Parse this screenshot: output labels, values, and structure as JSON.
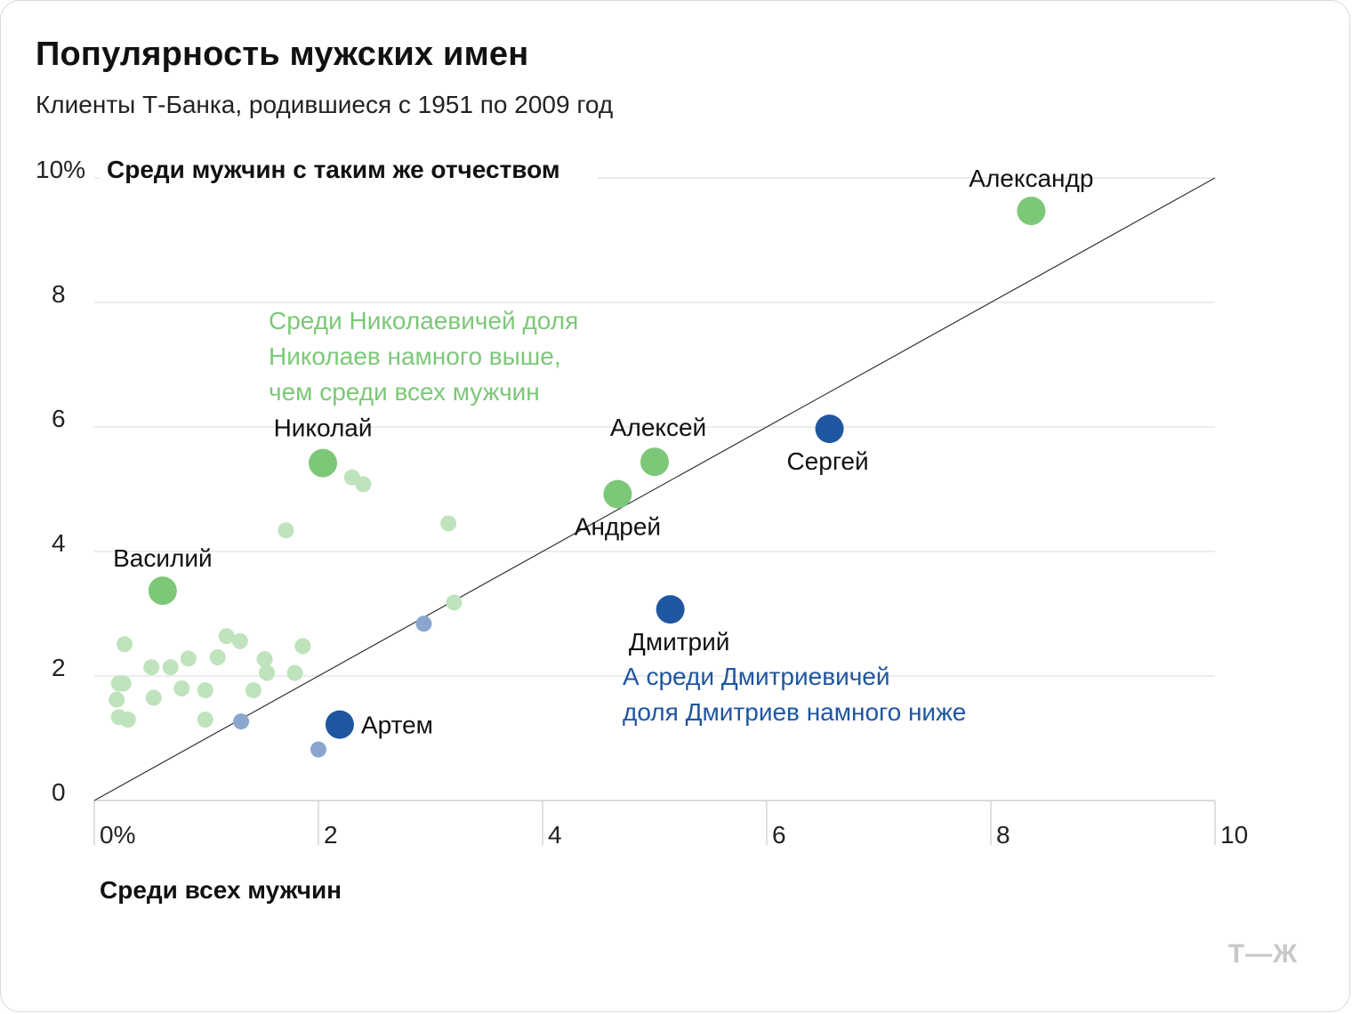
{
  "title": "Популярность мужских имен",
  "subtitle": "Клиенты Т-Банка, родившиеся с 1951 по 2009 год",
  "colors": {
    "green": "#7cc878",
    "green_light": "#bfe3bc",
    "blue": "#1f56a0",
    "blue_light": "#8aa6cf",
    "grid": "#e6e6e6",
    "diagonal": "#333333"
  },
  "chart_data": {
    "type": "scatter",
    "xlabel": "Среди всех мужчин",
    "ylabel": "Среди мужчин с таким же отчеством",
    "xlim": [
      0,
      10
    ],
    "ylim": [
      0,
      10
    ],
    "x_ticks": [
      "0%",
      "2",
      "4",
      "6",
      "8",
      "10"
    ],
    "y_ticks": [
      "0",
      "2",
      "4",
      "6",
      "8",
      "10%"
    ],
    "grid": "horizontal",
    "reference_line": "y = x",
    "labeled_points": [
      {
        "name": "Александр",
        "x": 8.36,
        "y": 9.47,
        "group": "green"
      },
      {
        "name": "Николай",
        "x": 2.04,
        "y": 5.42,
        "group": "green"
      },
      {
        "name": "Алексей",
        "x": 5.0,
        "y": 5.44,
        "group": "green"
      },
      {
        "name": "Андрей",
        "x": 4.67,
        "y": 4.92,
        "group": "green"
      },
      {
        "name": "Сергей",
        "x": 6.56,
        "y": 5.97,
        "group": "blue"
      },
      {
        "name": "Василий",
        "x": 0.61,
        "y": 3.37,
        "group": "green"
      },
      {
        "name": "Дмитрий",
        "x": 5.14,
        "y": 3.07,
        "group": "blue"
      },
      {
        "name": "Артем",
        "x": 2.19,
        "y": 1.22,
        "group": "blue"
      }
    ],
    "other_points": [
      {
        "x": 2.3,
        "y": 5.19,
        "group": "green"
      },
      {
        "x": 2.4,
        "y": 5.08,
        "group": "green"
      },
      {
        "x": 1.71,
        "y": 4.34,
        "group": "green"
      },
      {
        "x": 3.16,
        "y": 4.45,
        "group": "green"
      },
      {
        "x": 3.21,
        "y": 3.18,
        "group": "green"
      },
      {
        "x": 2.94,
        "y": 2.84,
        "group": "blue"
      },
      {
        "x": 0.27,
        "y": 2.51,
        "group": "green"
      },
      {
        "x": 1.18,
        "y": 2.64,
        "group": "green"
      },
      {
        "x": 1.3,
        "y": 2.56,
        "group": "green"
      },
      {
        "x": 1.86,
        "y": 2.48,
        "group": "green"
      },
      {
        "x": 0.51,
        "y": 2.14,
        "group": "green"
      },
      {
        "x": 0.68,
        "y": 2.14,
        "group": "green"
      },
      {
        "x": 0.84,
        "y": 2.28,
        "group": "green"
      },
      {
        "x": 1.1,
        "y": 2.3,
        "group": "green"
      },
      {
        "x": 1.52,
        "y": 2.27,
        "group": "green"
      },
      {
        "x": 1.54,
        "y": 2.05,
        "group": "green"
      },
      {
        "x": 1.79,
        "y": 2.05,
        "group": "green"
      },
      {
        "x": 0.22,
        "y": 1.88,
        "group": "green"
      },
      {
        "x": 0.26,
        "y": 1.88,
        "group": "green"
      },
      {
        "x": 0.2,
        "y": 1.62,
        "group": "green"
      },
      {
        "x": 0.53,
        "y": 1.65,
        "group": "green"
      },
      {
        "x": 0.78,
        "y": 1.8,
        "group": "green"
      },
      {
        "x": 0.99,
        "y": 1.77,
        "group": "green"
      },
      {
        "x": 1.42,
        "y": 1.77,
        "group": "green"
      },
      {
        "x": 0.22,
        "y": 1.34,
        "group": "green"
      },
      {
        "x": 0.3,
        "y": 1.3,
        "group": "green"
      },
      {
        "x": 0.99,
        "y": 1.3,
        "group": "green"
      },
      {
        "x": 1.31,
        "y": 1.27,
        "group": "blue"
      },
      {
        "x": 2.0,
        "y": 0.82,
        "group": "blue"
      }
    ],
    "annotations": [
      {
        "lines": [
          "Среди Николаевичей доля",
          "Николаев намного выше,",
          "чем среди всех мужчин"
        ],
        "group": "green"
      },
      {
        "lines": [
          "А среди Дмитриевичей",
          "доля Дмитриев намного ниже"
        ],
        "group": "blue"
      }
    ]
  },
  "brand": "Т—Ж"
}
